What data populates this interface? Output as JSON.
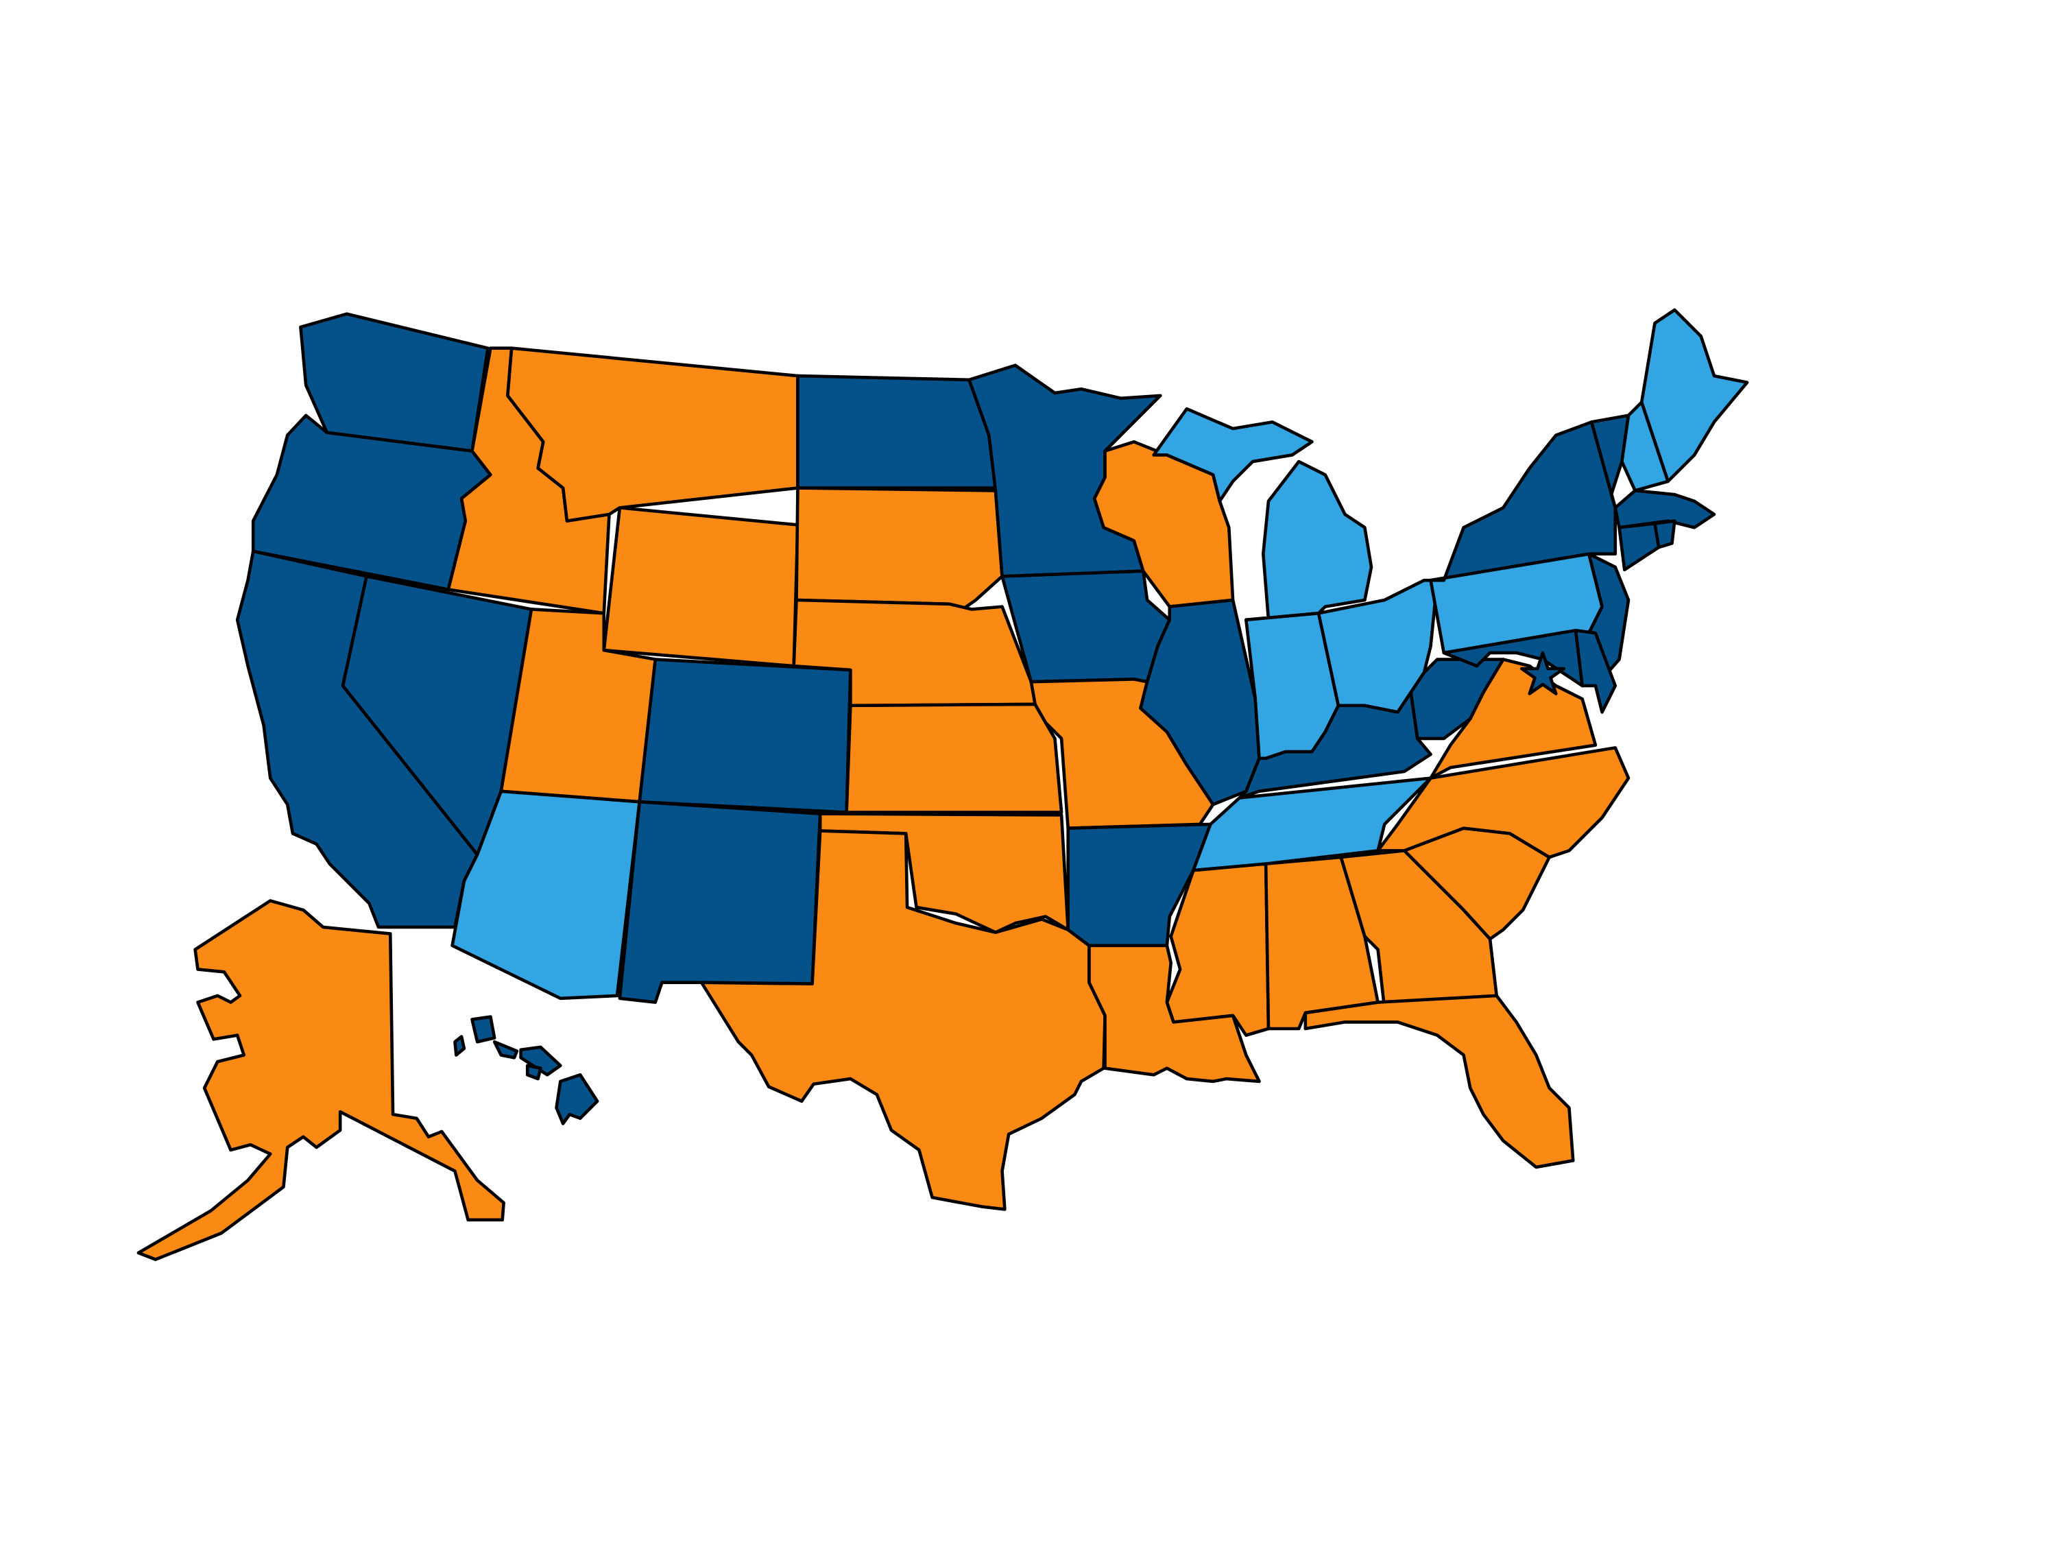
{
  "map": {
    "fills": [
      "#045289",
      "#fb8a15",
      "#34a5e3"
    ],
    "outline": "#000000",
    "background": "#ffffff"
  }
}
